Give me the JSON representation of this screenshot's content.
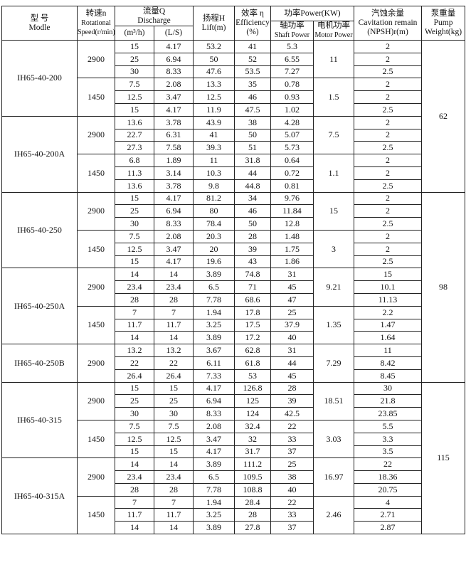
{
  "headers": {
    "model_cn": "型 号",
    "model_en": "Modle",
    "speed_cn": "转速n",
    "speed_en1": "Rotational",
    "speed_en2": "Speed(r/min)",
    "flow_cn": "流量Q",
    "flow_en": "Discharge",
    "flow_unit1": "(m³/h)",
    "flow_unit2": "(L/S)",
    "lift_cn": "扬程H",
    "lift_en": "Lift(m)",
    "eff_cn": "效率 η",
    "eff_en": "Efficiency",
    "eff_unit": "(%)",
    "power": "功率Power(KW)",
    "shaft_cn": "轴功率",
    "shaft_en": "Shaft Power",
    "motor_cn": "电机功率",
    "motor_en": "Motor Power",
    "npsh_cn": "汽蚀余量",
    "npsh_en": "Cavitation remain",
    "npsh_unit": "(NPSH)r(m)",
    "weight_cn": "泵重量",
    "weight_en1": "Pump",
    "weight_en2": "Weight(kg)"
  },
  "weights": [
    {
      "value": "62",
      "rows": 12
    },
    {
      "value": "98",
      "rows": 15
    },
    {
      "value": "115",
      "rows": 12
    }
  ],
  "models": [
    {
      "name": "IH65-40-200",
      "speeds": [
        {
          "speed": "2900",
          "motor": "11",
          "rows": [
            [
              "15",
              "4.17",
              "53.2",
              "41",
              "5.3",
              "2"
            ],
            [
              "25",
              "6.94",
              "50",
              "52",
              "6.55",
              "2"
            ],
            [
              "30",
              "8.33",
              "47.6",
              "53.5",
              "7.27",
              "2.5"
            ]
          ]
        },
        {
          "speed": "1450",
          "motor": "1.5",
          "rows": [
            [
              "7.5",
              "2.08",
              "13.3",
              "35",
              "0.78",
              "2"
            ],
            [
              "12.5",
              "3.47",
              "12.5",
              "46",
              "0.93",
              "2"
            ],
            [
              "15",
              "4.17",
              "11.9",
              "47.5",
              "1.02",
              "2.5"
            ]
          ]
        }
      ]
    },
    {
      "name": "IH65-40-200A",
      "speeds": [
        {
          "speed": "2900",
          "motor": "7.5",
          "rows": [
            [
              "13.6",
              "3.78",
              "43.9",
              "38",
              "4.28",
              "2"
            ],
            [
              "22.7",
              "6.31",
              "41",
              "50",
              "5.07",
              "2"
            ],
            [
              "27.3",
              "7.58",
              "39.3",
              "51",
              "5.73",
              "2.5"
            ]
          ]
        },
        {
          "speed": "1450",
          "motor": "1.1",
          "rows": [
            [
              "6.8",
              "1.89",
              "11",
              "31.8",
              "0.64",
              "2"
            ],
            [
              "11.3",
              "3.14",
              "10.3",
              "44",
              "0.72",
              "2"
            ],
            [
              "13.6",
              "3.78",
              "9.8",
              "44.8",
              "0.81",
              "2.5"
            ]
          ]
        }
      ]
    },
    {
      "name": "IH65-40-250",
      "speeds": [
        {
          "speed": "2900",
          "motor": "15",
          "rows": [
            [
              "15",
              "4.17",
              "81.2",
              "34",
              "9.76",
              "2"
            ],
            [
              "25",
              "6.94",
              "80",
              "46",
              "11.84",
              "2"
            ],
            [
              "30",
              "8.33",
              "78.4",
              "50",
              "12.8",
              "2.5"
            ]
          ]
        },
        {
          "speed": "1450",
          "motor": "3",
          "rows": [
            [
              "7.5",
              "2.08",
              "20.3",
              "28",
              "1.48",
              "2"
            ],
            [
              "12.5",
              "3.47",
              "20",
              "39",
              "1.75",
              "2"
            ],
            [
              "15",
              "4.17",
              "19.6",
              "43",
              "1.86",
              "2.5"
            ]
          ]
        }
      ]
    },
    {
      "name": "IH65-40-250A",
      "speeds": [
        {
          "speed": "2900",
          "motor": "9.21",
          "rows": [
            [
              "14",
              "14",
              "3.89",
              "74.8",
              "31",
              "15"
            ],
            [
              "23.4",
              "23.4",
              "6.5",
              "71",
              "45",
              "10.1"
            ],
            [
              "28",
              "28",
              "7.78",
              "68.6",
              "47",
              "11.13"
            ]
          ]
        },
        {
          "speed": "1450",
          "motor": "1.35",
          "rows": [
            [
              "7",
              "7",
              "1.94",
              "17.8",
              "25",
              "2.2"
            ],
            [
              "11.7",
              "11.7",
              "3.25",
              "17.5",
              "37.9",
              "1.47"
            ],
            [
              "14",
              "14",
              "3.89",
              "17.2",
              "40",
              "1.64"
            ]
          ]
        }
      ]
    },
    {
      "name": "IH65-40-250B",
      "speeds": [
        {
          "speed": "2900",
          "motor": "7.29",
          "rows": [
            [
              "13.2",
              "13.2",
              "3.67",
              "62.8",
              "31",
              "11"
            ],
            [
              "22",
              "22",
              "6.11",
              "61.8",
              "44",
              "8.42"
            ],
            [
              "26.4",
              "26.4",
              "7.33",
              "53",
              "45",
              "8.45"
            ]
          ]
        }
      ]
    },
    {
      "name": "IH65-40-315",
      "speeds": [
        {
          "speed": "2900",
          "motor": "18.51",
          "rows": [
            [
              "15",
              "15",
              "4.17",
              "126.8",
              "28",
              "30"
            ],
            [
              "25",
              "25",
              "6.94",
              "125",
              "39",
              "21.8"
            ],
            [
              "30",
              "30",
              "8.33",
              "124",
              "42.5",
              "23.85"
            ]
          ]
        },
        {
          "speed": "1450",
          "motor": "3.03",
          "rows": [
            [
              "7.5",
              "7.5",
              "2.08",
              "32.4",
              "22",
              "5.5"
            ],
            [
              "12.5",
              "12.5",
              "3.47",
              "32",
              "33",
              "3.3"
            ],
            [
              "15",
              "15",
              "4.17",
              "31.7",
              "37",
              "3.5"
            ]
          ]
        }
      ]
    },
    {
      "name": "IH65-40-315A",
      "speeds": [
        {
          "speed": "2900",
          "motor": "16.97",
          "rows": [
            [
              "14",
              "14",
              "3.89",
              "111.2",
              "25",
              "22"
            ],
            [
              "23.4",
              "23.4",
              "6.5",
              "109.5",
              "38",
              "18.36"
            ],
            [
              "28",
              "28",
              "7.78",
              "108.8",
              "40",
              "20.75"
            ]
          ]
        },
        {
          "speed": "1450",
          "motor": "2.46",
          "rows": [
            [
              "7",
              "7",
              "1.94",
              "28.4",
              "22",
              "4"
            ],
            [
              "11.7",
              "11.7",
              "3.25",
              "28",
              "33",
              "2.71"
            ],
            [
              "14",
              "14",
              "3.89",
              "27.8",
              "37",
              "2.87"
            ]
          ]
        }
      ]
    }
  ]
}
